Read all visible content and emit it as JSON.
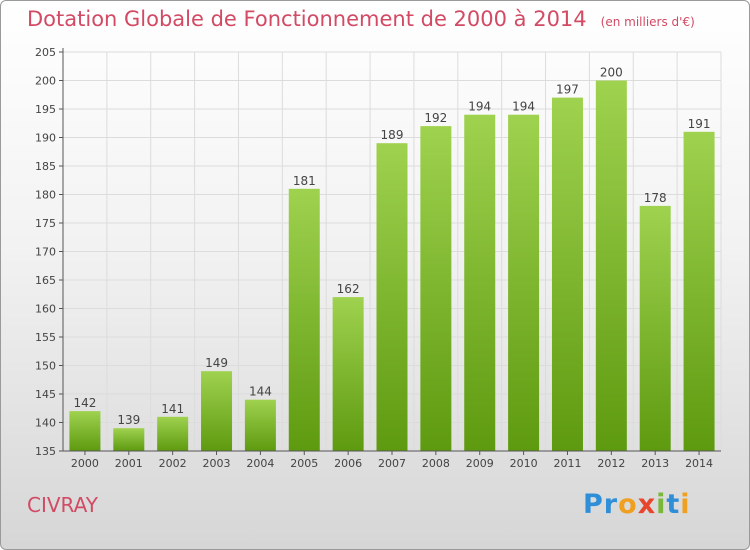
{
  "header": {
    "title": "Dotation Globale de Fonctionnement de 2000 à 2014",
    "subtitle": "(en milliers d'€)"
  },
  "footer": {
    "place": "CIVRAY",
    "brand_letters": [
      {
        "char": "P",
        "color": "#2e8fd8"
      },
      {
        "char": "r",
        "color": "#2e8fd8"
      },
      {
        "char": "o",
        "color": "#f0a020"
      },
      {
        "char": "x",
        "color": "#e8452c"
      },
      {
        "char": "i",
        "color": "#7ab83a"
      },
      {
        "char": "t",
        "color": "#2e8fd8"
      },
      {
        "char": "i",
        "color": "#f0a020"
      }
    ]
  },
  "colors": {
    "title": "#d24a64",
    "bar_top": "#9fd24f",
    "bar_bottom": "#5e9a10",
    "grid": "#dcdcdc",
    "axis": "#555555"
  },
  "chart_data": {
    "type": "bar",
    "title": "Dotation Globale de Fonctionnement de 2000 à 2014",
    "subtitle": "(en milliers d'€)",
    "categories": [
      "2000",
      "2001",
      "2002",
      "2003",
      "2004",
      "2005",
      "2006",
      "2007",
      "2008",
      "2009",
      "2010",
      "2011",
      "2012",
      "2013",
      "2014"
    ],
    "values": [
      142,
      139,
      141,
      149,
      144,
      181,
      162,
      189,
      192,
      194,
      194,
      197,
      200,
      178,
      191
    ],
    "ylim": [
      135,
      205
    ],
    "yticks": [
      135,
      140,
      145,
      150,
      155,
      160,
      165,
      170,
      175,
      180,
      185,
      190,
      195,
      200,
      205
    ],
    "grid": true,
    "data_labels": true
  }
}
